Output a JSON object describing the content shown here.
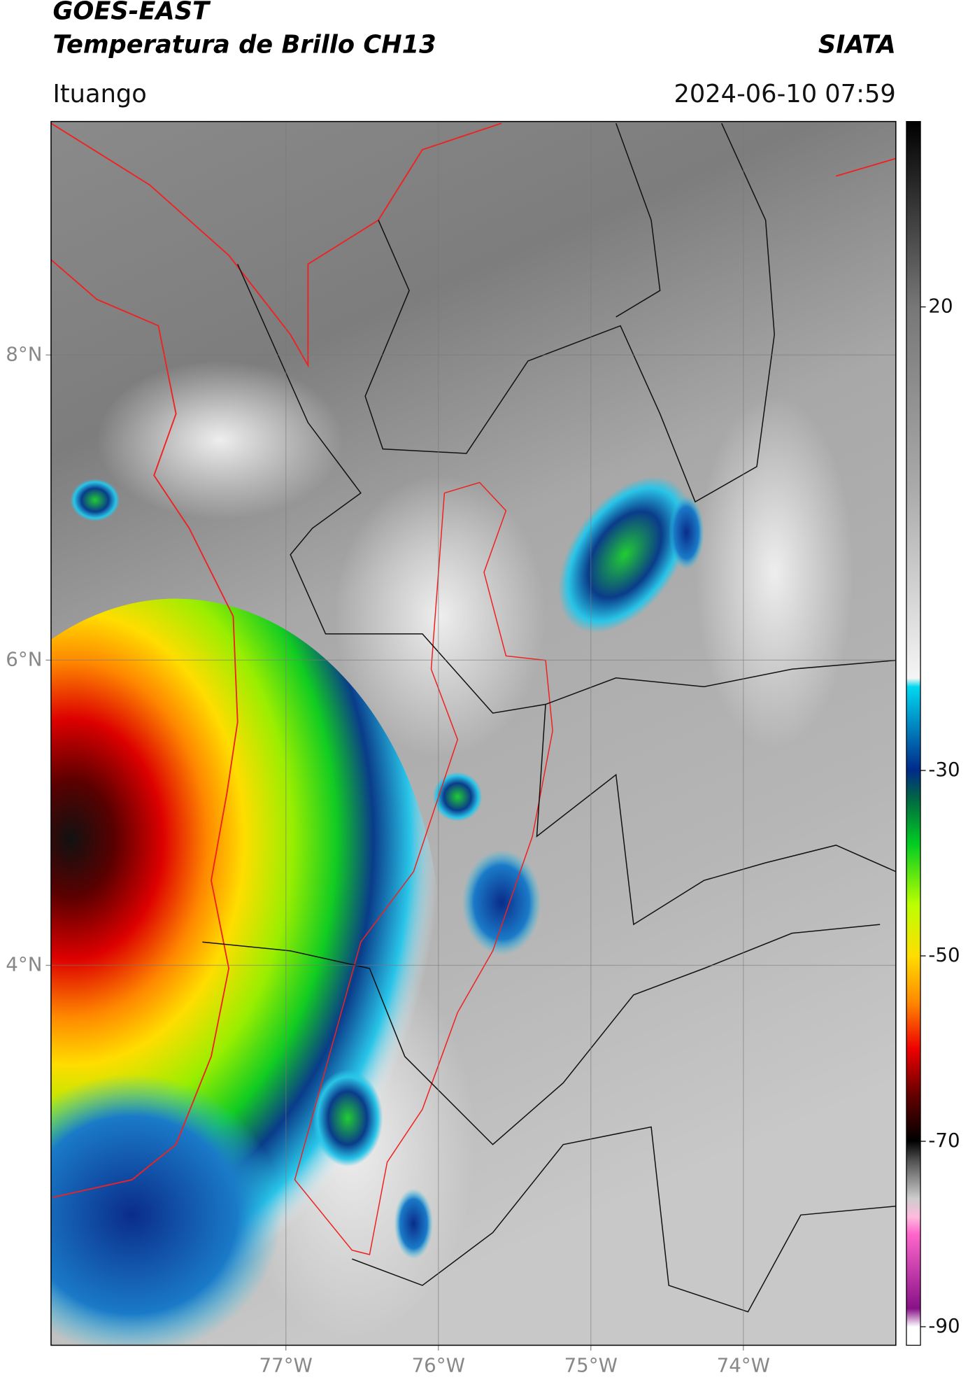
{
  "header": {
    "satellite": "GOES-EAST",
    "product": "Temperatura de Brillo CH13",
    "agency": "SIATA",
    "region": "Ituango",
    "timestamp": "2024-06-10 07:59"
  },
  "map": {
    "latlim": [
      1.51,
      9.53
    ],
    "lonlim": [
      -78.54,
      -73.0
    ],
    "lat_ticks": [
      {
        "value": 8,
        "label": "8°N"
      },
      {
        "value": 6,
        "label": "6°N"
      },
      {
        "value": 4,
        "label": "4°N"
      }
    ],
    "lon_ticks": [
      {
        "value": -77,
        "label": "77°W"
      },
      {
        "value": -76,
        "label": "76°W"
      },
      {
        "value": -75,
        "label": "75°W"
      },
      {
        "value": -74,
        "label": "74°W"
      }
    ]
  },
  "colorbar": {
    "range": [
      -92,
      40
    ],
    "ticks": [
      20,
      -30,
      -50,
      -70,
      -90
    ]
  }
}
